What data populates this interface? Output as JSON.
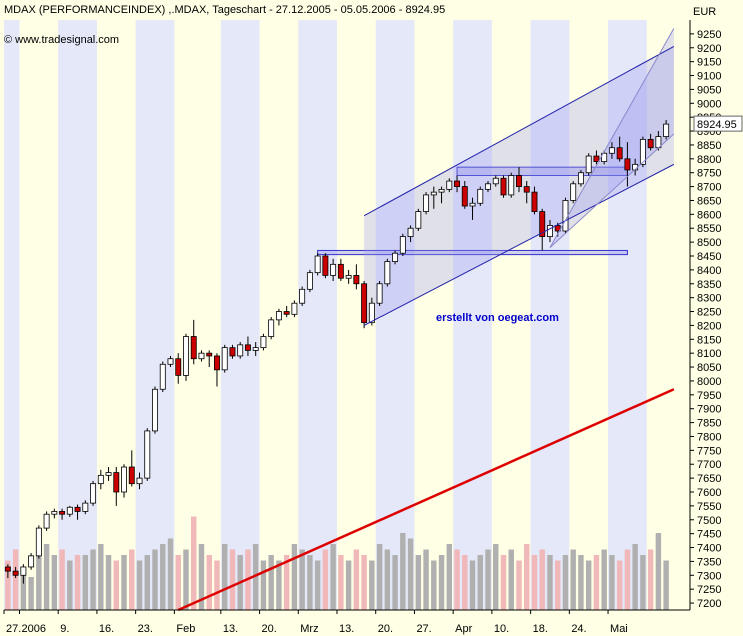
{
  "header": {
    "title": "MDAX (PERFORMANCEINDEX) ,.MDAX, Tageschart - 27.12.2005 - 05.05.2006 - 8924.95",
    "source": "© www.tradesignal.com"
  },
  "chart_data": {
    "type": "candlestick",
    "currency_label": "EUR",
    "last_value_label": "8924.95",
    "annotation": "erstellt von oegeat.com",
    "ylim": [
      7175,
      9300
    ],
    "y_ticks": [
      7200,
      7250,
      7300,
      7350,
      7400,
      7450,
      7500,
      7550,
      7600,
      7650,
      7700,
      7750,
      7800,
      7850,
      7900,
      7950,
      8000,
      8050,
      8100,
      8150,
      8200,
      8250,
      8300,
      8350,
      8400,
      8450,
      8500,
      8550,
      8600,
      8650,
      8700,
      8750,
      8800,
      8850,
      8900,
      8950,
      9000,
      9050,
      9100,
      9150,
      9200,
      9250
    ],
    "x_ticks": [
      "27.",
      "2006",
      "9.",
      "16.",
      "23.",
      "Feb",
      "13.",
      "20.",
      "Mrz",
      "13.",
      "20.",
      "27.",
      "Apr",
      "10.",
      "18.",
      "24.",
      "Mai"
    ],
    "candles": [
      {
        "o": 7330,
        "h": 7340,
        "l": 7290,
        "c": 7315
      },
      {
        "o": 7315,
        "h": 7330,
        "l": 7290,
        "c": 7300
      },
      {
        "o": 7300,
        "h": 7340,
        "l": 7270,
        "c": 7330
      },
      {
        "o": 7330,
        "h": 7380,
        "l": 7320,
        "c": 7370
      },
      {
        "o": 7370,
        "h": 7480,
        "l": 7360,
        "c": 7470
      },
      {
        "o": 7470,
        "h": 7530,
        "l": 7460,
        "c": 7520
      },
      {
        "o": 7520,
        "h": 7540,
        "l": 7505,
        "c": 7530
      },
      {
        "o": 7530,
        "h": 7540,
        "l": 7500,
        "c": 7520
      },
      {
        "o": 7520,
        "h": 7550,
        "l": 7510,
        "c": 7545
      },
      {
        "o": 7545,
        "h": 7555,
        "l": 7500,
        "c": 7530
      },
      {
        "o": 7530,
        "h": 7570,
        "l": 7520,
        "c": 7560
      },
      {
        "o": 7560,
        "h": 7640,
        "l": 7550,
        "c": 7630
      },
      {
        "o": 7630,
        "h": 7680,
        "l": 7610,
        "c": 7660
      },
      {
        "o": 7660,
        "h": 7690,
        "l": 7640,
        "c": 7670
      },
      {
        "o": 7670,
        "h": 7690,
        "l": 7550,
        "c": 7600
      },
      {
        "o": 7600,
        "h": 7700,
        "l": 7580,
        "c": 7690
      },
      {
        "o": 7690,
        "h": 7750,
        "l": 7620,
        "c": 7630
      },
      {
        "o": 7630,
        "h": 7670,
        "l": 7610,
        "c": 7650
      },
      {
        "o": 7650,
        "h": 7830,
        "l": 7640,
        "c": 7820
      },
      {
        "o": 7820,
        "h": 7980,
        "l": 7810,
        "c": 7970
      },
      {
        "o": 7970,
        "h": 8070,
        "l": 7960,
        "c": 8060
      },
      {
        "o": 8060,
        "h": 8090,
        "l": 8050,
        "c": 8080
      },
      {
        "o": 8080,
        "h": 8100,
        "l": 7990,
        "c": 8020
      },
      {
        "o": 8020,
        "h": 8170,
        "l": 8000,
        "c": 8160
      },
      {
        "o": 8160,
        "h": 8220,
        "l": 8060,
        "c": 8080
      },
      {
        "o": 8080,
        "h": 8110,
        "l": 8070,
        "c": 8100
      },
      {
        "o": 8100,
        "h": 8110,
        "l": 8050,
        "c": 8090
      },
      {
        "o": 8090,
        "h": 8100,
        "l": 7980,
        "c": 8040
      },
      {
        "o": 8040,
        "h": 8130,
        "l": 8030,
        "c": 8120
      },
      {
        "o": 8120,
        "h": 8130,
        "l": 8080,
        "c": 8090
      },
      {
        "o": 8090,
        "h": 8140,
        "l": 8080,
        "c": 8130
      },
      {
        "o": 8130,
        "h": 8160,
        "l": 8090,
        "c": 8110
      },
      {
        "o": 8110,
        "h": 8140,
        "l": 8090,
        "c": 8120
      },
      {
        "o": 8120,
        "h": 8170,
        "l": 8110,
        "c": 8160
      },
      {
        "o": 8160,
        "h": 8230,
        "l": 8150,
        "c": 8220
      },
      {
        "o": 8220,
        "h": 8260,
        "l": 8200,
        "c": 8250
      },
      {
        "o": 8250,
        "h": 8270,
        "l": 8230,
        "c": 8240
      },
      {
        "o": 8240,
        "h": 8290,
        "l": 8230,
        "c": 8280
      },
      {
        "o": 8280,
        "h": 8340,
        "l": 8270,
        "c": 8330
      },
      {
        "o": 8330,
        "h": 8400,
        "l": 8320,
        "c": 8390
      },
      {
        "o": 8390,
        "h": 8460,
        "l": 8380,
        "c": 8450
      },
      {
        "o": 8450,
        "h": 8460,
        "l": 8370,
        "c": 8380
      },
      {
        "o": 8380,
        "h": 8440,
        "l": 8360,
        "c": 8420
      },
      {
        "o": 8420,
        "h": 8440,
        "l": 8360,
        "c": 8370
      },
      {
        "o": 8370,
        "h": 8400,
        "l": 8350,
        "c": 8380
      },
      {
        "o": 8380,
        "h": 8420,
        "l": 8330,
        "c": 8350
      },
      {
        "o": 8350,
        "h": 8360,
        "l": 8190,
        "c": 8210
      },
      {
        "o": 8210,
        "h": 8300,
        "l": 8200,
        "c": 8280
      },
      {
        "o": 8280,
        "h": 8360,
        "l": 8270,
        "c": 8350
      },
      {
        "o": 8350,
        "h": 8440,
        "l": 8340,
        "c": 8430
      },
      {
        "o": 8430,
        "h": 8470,
        "l": 8420,
        "c": 8460
      },
      {
        "o": 8460,
        "h": 8530,
        "l": 8450,
        "c": 8520
      },
      {
        "o": 8520,
        "h": 8560,
        "l": 8500,
        "c": 8550
      },
      {
        "o": 8550,
        "h": 8620,
        "l": 8540,
        "c": 8610
      },
      {
        "o": 8610,
        "h": 8680,
        "l": 8600,
        "c": 8670
      },
      {
        "o": 8670,
        "h": 8700,
        "l": 8620,
        "c": 8680
      },
      {
        "o": 8680,
        "h": 8700,
        "l": 8640,
        "c": 8690
      },
      {
        "o": 8690,
        "h": 8730,
        "l": 8680,
        "c": 8720
      },
      {
        "o": 8720,
        "h": 8740,
        "l": 8680,
        "c": 8700
      },
      {
        "o": 8700,
        "h": 8720,
        "l": 8620,
        "c": 8630
      },
      {
        "o": 8630,
        "h": 8660,
        "l": 8580,
        "c": 8640
      },
      {
        "o": 8640,
        "h": 8700,
        "l": 8630,
        "c": 8690
      },
      {
        "o": 8690,
        "h": 8720,
        "l": 8680,
        "c": 8710
      },
      {
        "o": 8710,
        "h": 8740,
        "l": 8700,
        "c": 8730
      },
      {
        "o": 8730,
        "h": 8740,
        "l": 8660,
        "c": 8670
      },
      {
        "o": 8670,
        "h": 8750,
        "l": 8660,
        "c": 8740
      },
      {
        "o": 8740,
        "h": 8770,
        "l": 8680,
        "c": 8700
      },
      {
        "o": 8700,
        "h": 8720,
        "l": 8640,
        "c": 8680
      },
      {
        "o": 8680,
        "h": 8700,
        "l": 8600,
        "c": 8610
      },
      {
        "o": 8610,
        "h": 8620,
        "l": 8470,
        "c": 8520
      },
      {
        "o": 8520,
        "h": 8580,
        "l": 8500,
        "c": 8560
      },
      {
        "o": 8560,
        "h": 8570,
        "l": 8520,
        "c": 8540
      },
      {
        "o": 8540,
        "h": 8660,
        "l": 8530,
        "c": 8650
      },
      {
        "o": 8650,
        "h": 8720,
        "l": 8640,
        "c": 8710
      },
      {
        "o": 8710,
        "h": 8760,
        "l": 8700,
        "c": 8750
      },
      {
        "o": 8750,
        "h": 8820,
        "l": 8740,
        "c": 8810
      },
      {
        "o": 8810,
        "h": 8830,
        "l": 8780,
        "c": 8790
      },
      {
        "o": 8790,
        "h": 8830,
        "l": 8780,
        "c": 8820
      },
      {
        "o": 8820,
        "h": 8860,
        "l": 8800,
        "c": 8840
      },
      {
        "o": 8840,
        "h": 8880,
        "l": 8790,
        "c": 8800
      },
      {
        "o": 8800,
        "h": 8860,
        "l": 8700,
        "c": 8760
      },
      {
        "o": 8760,
        "h": 8800,
        "l": 8740,
        "c": 8780
      },
      {
        "o": 8780,
        "h": 8880,
        "l": 8770,
        "c": 8870
      },
      {
        "o": 8870,
        "h": 8890,
        "l": 8830,
        "c": 8840
      },
      {
        "o": 8840,
        "h": 8900,
        "l": 8830,
        "c": 8880
      },
      {
        "o": 8880,
        "h": 8940,
        "l": 8870,
        "c": 8925
      }
    ],
    "volume_heights": [
      0.45,
      0.55,
      0.35,
      0.3,
      0.5,
      0.6,
      0.5,
      0.55,
      0.45,
      0.5,
      0.5,
      0.55,
      0.6,
      0.5,
      0.45,
      0.5,
      0.55,
      0.45,
      0.5,
      0.55,
      0.6,
      0.65,
      0.5,
      0.55,
      0.85,
      0.6,
      0.5,
      0.45,
      0.6,
      0.55,
      0.5,
      0.55,
      0.6,
      0.45,
      0.5,
      0.45,
      0.5,
      0.6,
      0.55,
      0.5,
      0.45,
      0.55,
      0.6,
      0.5,
      0.45,
      0.55,
      0.5,
      0.45,
      0.6,
      0.55,
      0.5,
      0.7,
      0.65,
      0.5,
      0.55,
      0.45,
      0.5,
      0.6,
      0.55,
      0.5,
      0.45,
      0.5,
      0.55,
      0.6,
      0.5,
      0.55,
      0.45,
      0.6,
      0.5,
      0.55,
      0.5,
      0.45,
      0.5,
      0.55,
      0.5,
      0.45,
      0.5,
      0.55,
      0.5,
      0.45,
      0.55,
      0.6,
      0.5,
      0.55,
      0.7,
      0.45
    ],
    "trend_lines": [
      {
        "name": "channel-upper",
        "color": "#2222aa",
        "p1": [
          46,
          8595
        ],
        "p2": [
          86,
          9205
        ]
      },
      {
        "name": "channel-lower",
        "color": "#2222aa",
        "p1": [
          46,
          8200
        ],
        "p2": [
          86,
          8780
        ]
      },
      {
        "name": "steep-upper",
        "color": "#8888cc",
        "p1": [
          70,
          8480
        ],
        "p2": [
          86,
          9270
        ]
      },
      {
        "name": "steep-lower",
        "color": "#8888cc",
        "p1": [
          70,
          8480
        ],
        "p2": [
          86,
          8890
        ]
      },
      {
        "name": "long-term-support",
        "color": "#dd0000",
        "p1": [
          22,
          7175
        ],
        "p2": [
          86,
          7970
        ]
      }
    ],
    "zones": [
      {
        "name": "resistance-zone-1",
        "x1": 40,
        "x2": 80,
        "y1": 8455,
        "y2": 8470
      },
      {
        "name": "resistance-zone-2",
        "x1": 58,
        "x2": 80,
        "y1": 8740,
        "y2": 8770
      }
    ],
    "colors": {
      "background": "#ffffe6",
      "stripe": "#e5e8f8",
      "bull": "#ffffff",
      "bear": "#cc0000",
      "channel_fill": "#9999ee",
      "volume_grey": "#b0b0b0",
      "volume_pink": "#f0b8b8"
    }
  }
}
